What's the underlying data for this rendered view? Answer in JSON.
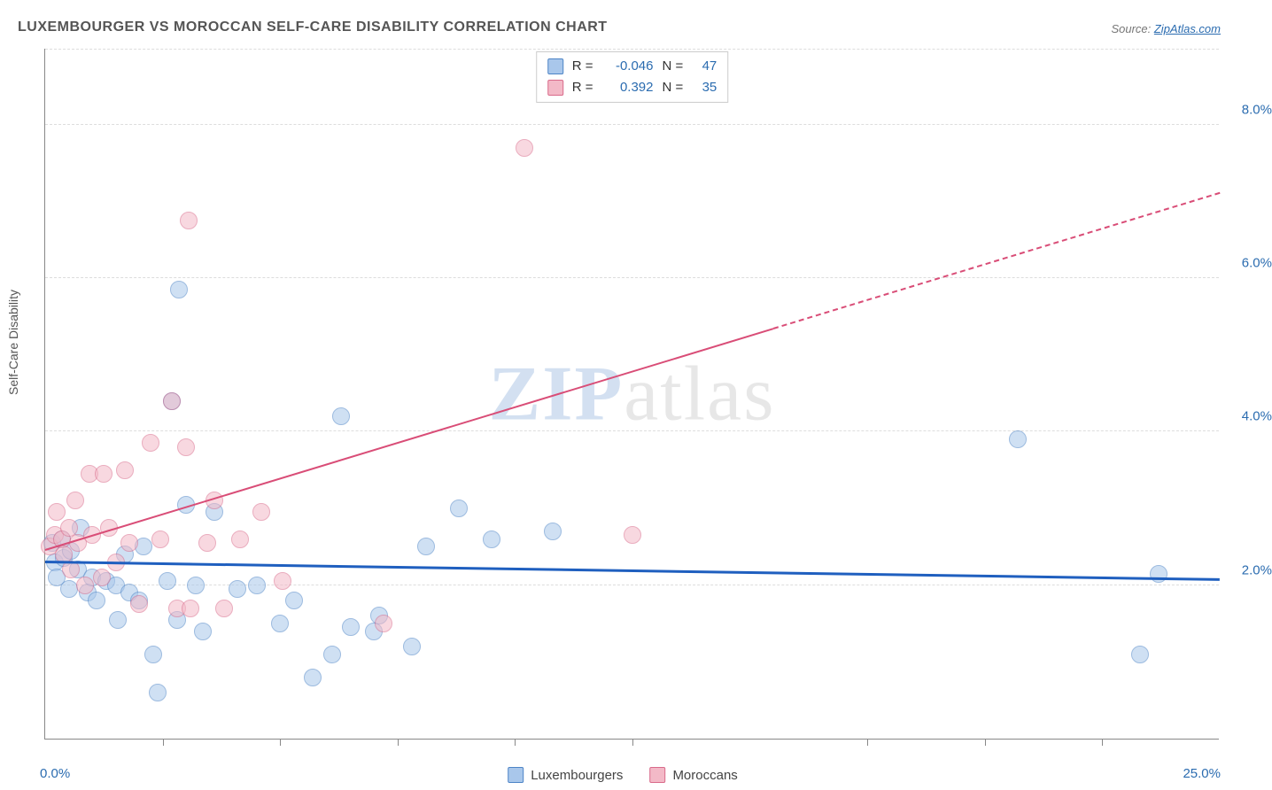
{
  "title": "LUXEMBOURGER VS MOROCCAN SELF-CARE DISABILITY CORRELATION CHART",
  "source_prefix": "Source: ",
  "source_link": "ZipAtlas.com",
  "ylabel": "Self-Care Disability",
  "watermark": {
    "part1": "ZIP",
    "part2": "atlas"
  },
  "chart": {
    "type": "scatter",
    "x_min": 0.0,
    "x_max": 25.0,
    "y_min": 0.0,
    "y_max": 9.0,
    "x_min_label": "0.0%",
    "x_max_label": "25.0%",
    "y_ticks": [
      2.0,
      4.0,
      6.0,
      8.0
    ],
    "y_tick_labels": [
      "2.0%",
      "4.0%",
      "6.0%",
      "8.0%"
    ],
    "x_ticks": [
      2.5,
      5.0,
      7.5,
      10.0,
      12.5,
      17.5,
      20.0,
      22.5
    ],
    "gridline_color": "#dddddd",
    "axis_color": "#888888",
    "axis_label_color": "#2b6cb0",
    "background_color": "#ffffff",
    "point_radius": 10,
    "point_opacity": 0.55,
    "series": [
      {
        "name": "Luxembourgers",
        "color_fill": "#a9c7eb",
        "color_stroke": "#4d84c6",
        "r_label": "R =",
        "r_value": "-0.046",
        "n_label": "N =",
        "n_value": "47",
        "trend": {
          "x1": 0.0,
          "y1": 2.28,
          "x2": 25.0,
          "y2": 2.05,
          "color": "#1f5fbf",
          "width": 3,
          "dashed_from_x": null
        },
        "points": [
          [
            0.15,
            2.55
          ],
          [
            0.2,
            2.3
          ],
          [
            0.25,
            2.1
          ],
          [
            0.35,
            2.6
          ],
          [
            0.4,
            2.35
          ],
          [
            0.5,
            1.95
          ],
          [
            0.55,
            2.45
          ],
          [
            0.7,
            2.2
          ],
          [
            0.75,
            2.75
          ],
          [
            0.9,
            1.9
          ],
          [
            1.0,
            2.1
          ],
          [
            1.1,
            1.8
          ],
          [
            1.3,
            2.05
          ],
          [
            1.5,
            2.0
          ],
          [
            1.55,
            1.55
          ],
          [
            1.7,
            2.4
          ],
          [
            1.8,
            1.9
          ],
          [
            2.0,
            1.8
          ],
          [
            2.1,
            2.5
          ],
          [
            2.3,
            1.1
          ],
          [
            2.4,
            0.6
          ],
          [
            2.6,
            2.05
          ],
          [
            2.7,
            4.4
          ],
          [
            2.8,
            1.55
          ],
          [
            2.85,
            5.85
          ],
          [
            3.0,
            3.05
          ],
          [
            3.2,
            2.0
          ],
          [
            3.35,
            1.4
          ],
          [
            3.6,
            2.95
          ],
          [
            4.1,
            1.95
          ],
          [
            4.5,
            2.0
          ],
          [
            5.0,
            1.5
          ],
          [
            5.3,
            1.8
          ],
          [
            5.7,
            0.8
          ],
          [
            6.1,
            1.1
          ],
          [
            6.3,
            4.2
          ],
          [
            6.5,
            1.45
          ],
          [
            7.0,
            1.4
          ],
          [
            7.1,
            1.6
          ],
          [
            7.8,
            1.2
          ],
          [
            8.1,
            2.5
          ],
          [
            8.8,
            3.0
          ],
          [
            9.5,
            2.6
          ],
          [
            10.8,
            2.7
          ],
          [
            20.7,
            3.9
          ],
          [
            23.3,
            1.1
          ],
          [
            23.7,
            2.15
          ]
        ]
      },
      {
        "name": "Moroccans",
        "color_fill": "#f3b9c7",
        "color_stroke": "#d96a8a",
        "r_label": "R =",
        "r_value": "0.392",
        "n_label": "N =",
        "n_value": "35",
        "trend": {
          "x1": 0.0,
          "y1": 2.45,
          "x2": 25.0,
          "y2": 7.1,
          "color": "#d94d77",
          "width": 2.32,
          "dashed_from_x": 15.5
        },
        "points": [
          [
            0.1,
            2.5
          ],
          [
            0.2,
            2.65
          ],
          [
            0.25,
            2.95
          ],
          [
            0.35,
            2.6
          ],
          [
            0.4,
            2.4
          ],
          [
            0.5,
            2.75
          ],
          [
            0.55,
            2.2
          ],
          [
            0.65,
            3.1
          ],
          [
            0.7,
            2.55
          ],
          [
            0.85,
            2.0
          ],
          [
            0.95,
            3.45
          ],
          [
            1.0,
            2.65
          ],
          [
            1.2,
            2.1
          ],
          [
            1.25,
            3.45
          ],
          [
            1.35,
            2.75
          ],
          [
            1.5,
            2.3
          ],
          [
            1.7,
            3.5
          ],
          [
            1.8,
            2.55
          ],
          [
            2.0,
            1.75
          ],
          [
            2.25,
            3.85
          ],
          [
            2.45,
            2.6
          ],
          [
            2.7,
            4.4
          ],
          [
            2.8,
            1.7
          ],
          [
            3.0,
            3.8
          ],
          [
            3.05,
            6.75
          ],
          [
            3.1,
            1.7
          ],
          [
            3.45,
            2.55
          ],
          [
            3.6,
            3.1
          ],
          [
            3.8,
            1.7
          ],
          [
            4.15,
            2.6
          ],
          [
            4.6,
            2.95
          ],
          [
            5.05,
            2.05
          ],
          [
            10.2,
            7.7
          ],
          [
            12.5,
            2.65
          ],
          [
            7.2,
            1.5
          ]
        ]
      }
    ]
  },
  "legend_top_width_r": "58px",
  "legend_top_width_n": "28px"
}
